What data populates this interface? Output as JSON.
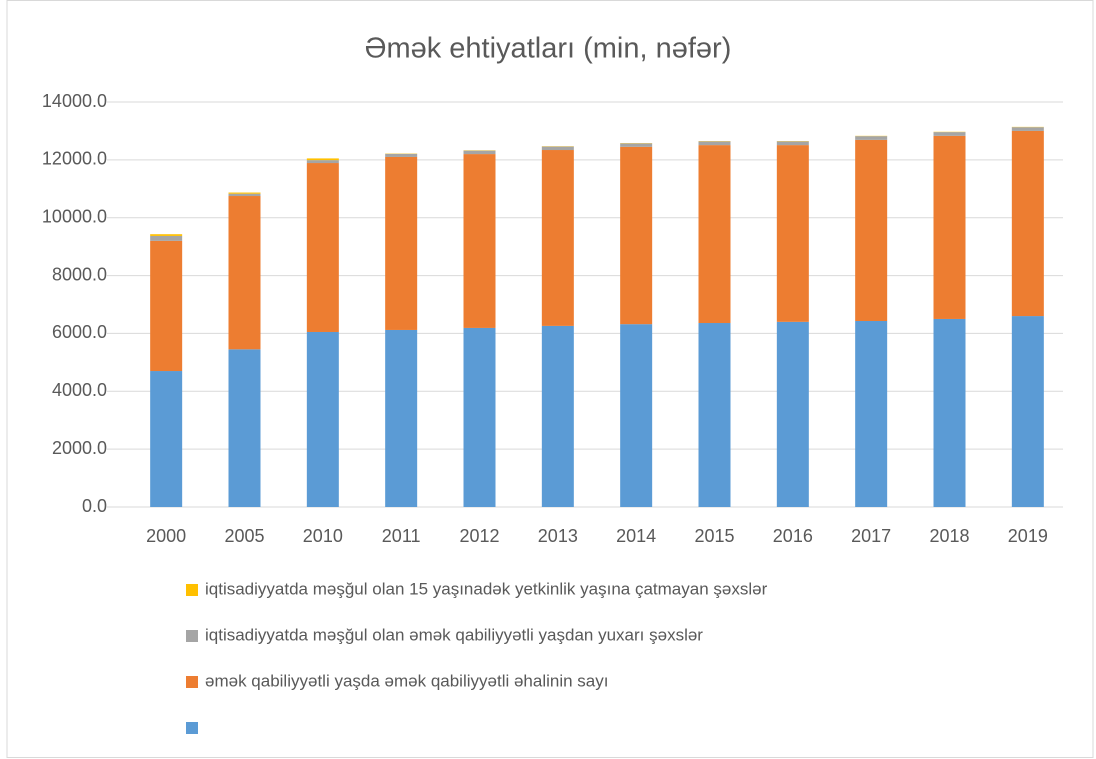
{
  "chart_data": {
    "type": "stacked_bar",
    "title": "Əmək ehtiyatları (min, nəfər)",
    "categories": [
      "2000",
      "2005",
      "2010",
      "2011",
      "2012",
      "2013",
      "2014",
      "2015",
      "2016",
      "2017",
      "2018",
      "2019"
    ],
    "series": [
      {
        "name": null,
        "color": "#5b9bd5",
        "values": [
          4700,
          5450,
          6050,
          6120,
          6190,
          6260,
          6320,
          6360,
          6400,
          6430,
          6500,
          6600
        ]
      },
      {
        "name": "əmək qabiliyyətli yaşda əmək qabiliyyətli əhalinin sayı",
        "color": "#ed7d31",
        "values": [
          4500,
          5300,
          5840,
          5980,
          6010,
          6080,
          6130,
          6150,
          6110,
          6260,
          6330,
          6400
        ]
      },
      {
        "name": "iqtisadiyyatda məşğul olan əmək qabiliyyətli yaşdan yuxarı şəxslər",
        "color": "#a5a5a5",
        "values": [
          170,
          80,
          100,
          110,
          120,
          120,
          120,
          130,
          130,
          130,
          130,
          130
        ]
      },
      {
        "name": "iqtisadiyyatda məşğul olan 15 yaşınadək yetkinlik yaşına çatmayan şəxslər",
        "color": "#ffc000",
        "values": [
          60,
          40,
          60,
          10,
          10,
          10,
          10,
          10,
          10,
          10,
          10,
          10
        ]
      }
    ],
    "ylim": [
      0,
      14000
    ],
    "yticks": [
      {
        "value": 0,
        "label": "0.0"
      },
      {
        "value": 2000,
        "label": "2000.0"
      },
      {
        "value": 4000,
        "label": "4000.0"
      },
      {
        "value": 6000,
        "label": "6000.0"
      },
      {
        "value": 8000,
        "label": "8000.0"
      },
      {
        "value": 10000,
        "label": "10000.0"
      },
      {
        "value": 12000,
        "label": "12000.0"
      },
      {
        "value": 14000,
        "label": "14000.0"
      }
    ],
    "grid": true,
    "legend": "bottom"
  }
}
